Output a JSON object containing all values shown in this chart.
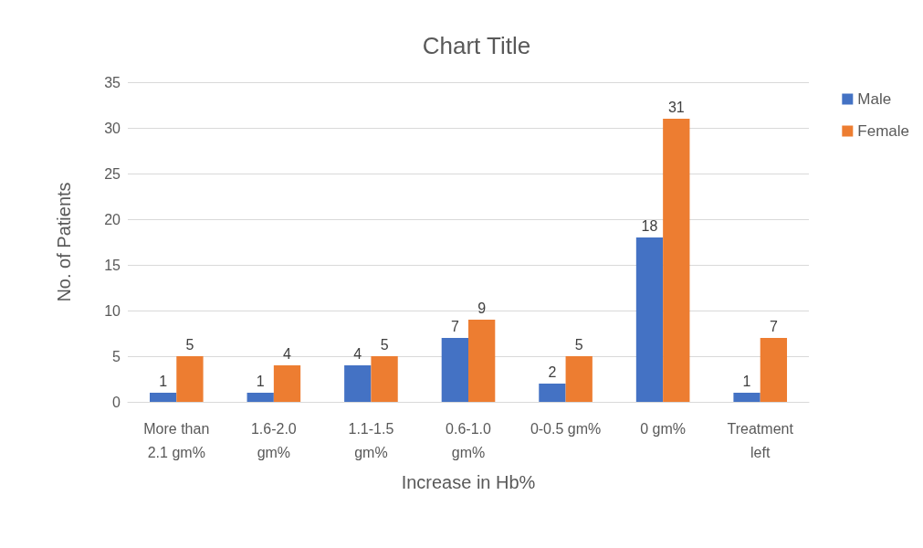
{
  "chart_data": {
    "type": "bar",
    "title": "Chart Title",
    "xlabel": "Increase in Hb%",
    "ylabel": "No. of Patients",
    "categories": [
      "More than\n2.1 gm%",
      "1.6-2.0\ngm%",
      "1.1-1.5\ngm%",
      "0.6-1.0\ngm%",
      "0-0.5 gm%",
      "0 gm%",
      "Treatment\nleft"
    ],
    "series": [
      {
        "name": "Male",
        "color": "#4472c4",
        "values": [
          1,
          1,
          4,
          7,
          2,
          18,
          1
        ]
      },
      {
        "name": "Female",
        "color": "#ed7d31",
        "values": [
          5,
          4,
          5,
          9,
          5,
          31,
          7
        ]
      }
    ],
    "ylim": [
      0,
      35
    ],
    "yticks": [
      0,
      5,
      10,
      15,
      20,
      25,
      30,
      35
    ],
    "grid": "y",
    "legend": "right",
    "data_labels": true
  }
}
